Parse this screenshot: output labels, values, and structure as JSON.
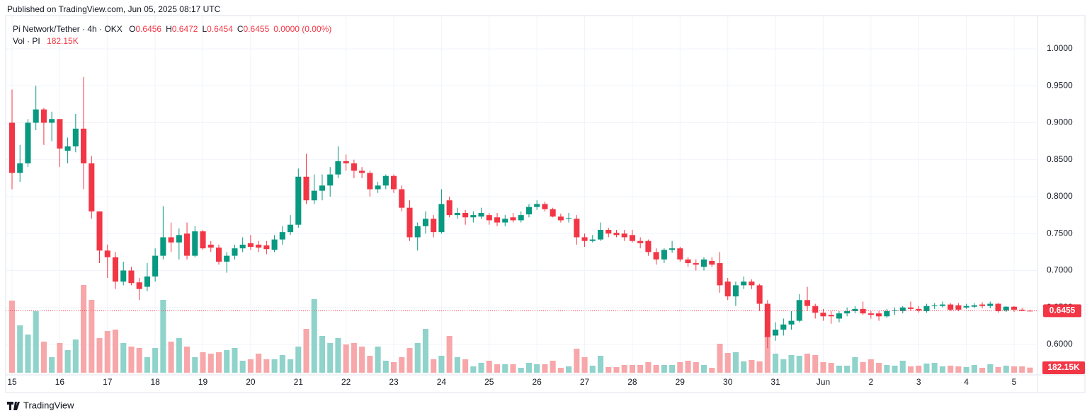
{
  "header": {
    "published": "Published on TradingView.com, Jun 05, 2025 08:17 UTC"
  },
  "chart_data": {
    "type": "candlestick",
    "title": "Pi Network/Tether · 4h · OKX",
    "legend": [
      {
        "key": "O",
        "value": 0.6456
      },
      {
        "key": "H",
        "value": 0.6472
      },
      {
        "key": "L",
        "value": 0.6454
      },
      {
        "key": "C",
        "value": 0.6455
      }
    ],
    "change": "0.0000 (0.00%)",
    "volume_title": "Vol · PI",
    "volume_value_label": "182.15K",
    "last_price": 0.6455,
    "up_color": "#089981",
    "down_color": "#f23645",
    "volume_up_color": "#8fd3cb",
    "volume_down_color": "#f7a7aa",
    "grid": true,
    "ylim": [
      0.5617,
      1.045
    ],
    "yticks": [
      {
        "value": 0.6,
        "label": "0.6000"
      },
      {
        "value": 0.65,
        "label": "0.6500"
      },
      {
        "value": 0.7,
        "label": "0.7000"
      },
      {
        "value": 0.75,
        "label": "0.7500"
      },
      {
        "value": 0.8,
        "label": "0.8000"
      },
      {
        "value": 0.85,
        "label": "0.8500"
      },
      {
        "value": 0.9,
        "label": "0.9000"
      },
      {
        "value": 0.95,
        "label": "0.9500"
      },
      {
        "value": 1.0,
        "label": "1.0000"
      }
    ],
    "volume_ylim": [
      0,
      3550000
    ],
    "xticks": [
      {
        "value": 0,
        "label": "15"
      },
      {
        "value": 6,
        "label": "16"
      },
      {
        "value": 12,
        "label": "17"
      },
      {
        "value": 18,
        "label": "18"
      },
      {
        "value": 24,
        "label": "19"
      },
      {
        "value": 30,
        "label": "20"
      },
      {
        "value": 36,
        "label": "21"
      },
      {
        "value": 42,
        "label": "22"
      },
      {
        "value": 48,
        "label": "23"
      },
      {
        "value": 54,
        "label": "24"
      },
      {
        "value": 60,
        "label": "25"
      },
      {
        "value": 66,
        "label": "26"
      },
      {
        "value": 72,
        "label": "27"
      },
      {
        "value": 78,
        "label": "28"
      },
      {
        "value": 84,
        "label": "29"
      },
      {
        "value": 90,
        "label": "30"
      },
      {
        "value": 96,
        "label": "31"
      },
      {
        "value": 102,
        "label": "Jun"
      },
      {
        "value": 108,
        "label": "2"
      },
      {
        "value": 114,
        "label": "3"
      },
      {
        "value": 120,
        "label": "4"
      },
      {
        "value": 126,
        "label": "5"
      }
    ],
    "open": [
      0.9,
      0.832,
      0.845,
      0.9,
      0.918,
      0.9,
      0.905,
      0.862,
      0.868,
      0.892,
      0.845,
      0.78,
      0.727,
      0.718,
      0.685,
      0.7,
      0.684,
      0.678,
      0.692,
      0.72,
      0.745,
      0.738,
      0.75,
      0.72,
      0.753,
      0.735,
      0.731,
      0.712,
      0.72,
      0.73,
      0.737,
      0.735,
      0.734,
      0.728,
      0.742,
      0.752,
      0.762,
      0.827,
      0.795,
      0.808,
      0.815,
      0.83,
      0.848,
      0.845,
      0.835,
      0.832,
      0.81,
      0.815,
      0.828,
      0.81,
      0.785,
      0.745,
      0.76,
      0.77,
      0.752,
      0.795,
      0.775,
      0.778,
      0.772,
      0.773,
      0.775,
      0.772,
      0.765,
      0.772,
      0.768,
      0.776,
      0.786,
      0.79,
      0.783,
      0.773,
      0.77,
      0.77,
      0.745,
      0.74,
      0.742,
      0.755,
      0.751,
      0.75,
      0.748,
      0.74,
      0.74,
      0.725,
      0.715,
      0.728,
      0.73,
      0.715,
      0.71,
      0.705,
      0.713,
      0.71,
      0.685,
      0.665,
      0.68,
      0.685,
      0.68,
      0.655,
      0.612,
      0.62,
      0.627,
      0.632,
      0.66,
      0.652,
      0.643,
      0.64,
      0.635,
      0.642,
      0.645,
      0.648,
      0.642,
      0.642,
      0.638,
      0.645,
      0.645,
      0.65,
      0.648,
      0.645,
      0.652,
      0.652,
      0.654,
      0.653,
      0.65,
      0.651,
      0.654,
      0.652,
      0.655,
      0.646,
      0.651,
      0.647,
      0.6456
    ],
    "high": [
      0.945,
      0.87,
      0.905,
      0.95,
      0.92,
      0.915,
      0.905,
      0.88,
      0.912,
      0.962,
      0.855,
      0.78,
      0.735,
      0.725,
      0.712,
      0.705,
      0.69,
      0.71,
      0.73,
      0.787,
      0.765,
      0.757,
      0.765,
      0.76,
      0.755,
      0.74,
      0.735,
      0.725,
      0.735,
      0.745,
      0.748,
      0.74,
      0.74,
      0.748,
      0.76,
      0.775,
      0.838,
      0.858,
      0.83,
      0.83,
      0.84,
      0.868,
      0.857,
      0.85,
      0.84,
      0.835,
      0.82,
      0.83,
      0.83,
      0.815,
      0.795,
      0.765,
      0.78,
      0.775,
      0.81,
      0.8,
      0.785,
      0.782,
      0.78,
      0.785,
      0.778,
      0.778,
      0.775,
      0.778,
      0.78,
      0.79,
      0.795,
      0.793,
      0.785,
      0.777,
      0.778,
      0.775,
      0.75,
      0.748,
      0.765,
      0.758,
      0.755,
      0.755,
      0.755,
      0.745,
      0.742,
      0.73,
      0.73,
      0.74,
      0.732,
      0.718,
      0.715,
      0.718,
      0.718,
      0.725,
      0.69,
      0.685,
      0.692,
      0.688,
      0.682,
      0.66,
      0.63,
      0.635,
      0.645,
      0.668,
      0.678,
      0.655,
      0.648,
      0.645,
      0.645,
      0.65,
      0.652,
      0.658,
      0.645,
      0.645,
      0.648,
      0.65,
      0.652,
      0.658,
      0.652,
      0.655,
      0.656,
      0.658,
      0.656,
      0.656,
      0.655,
      0.656,
      0.657,
      0.658,
      0.656,
      0.652,
      0.652,
      0.649,
      0.6472
    ],
    "low": [
      0.81,
      0.82,
      0.84,
      0.89,
      0.87,
      0.875,
      0.84,
      0.845,
      0.86,
      0.81,
      0.77,
      0.71,
      0.69,
      0.675,
      0.68,
      0.68,
      0.66,
      0.672,
      0.685,
      0.715,
      0.725,
      0.715,
      0.715,
      0.718,
      0.728,
      0.725,
      0.708,
      0.697,
      0.715,
      0.725,
      0.728,
      0.725,
      0.722,
      0.725,
      0.735,
      0.748,
      0.758,
      0.79,
      0.79,
      0.795,
      0.8,
      0.825,
      0.835,
      0.825,
      0.825,
      0.8,
      0.805,
      0.81,
      0.805,
      0.78,
      0.74,
      0.727,
      0.75,
      0.745,
      0.75,
      0.772,
      0.77,
      0.762,
      0.765,
      0.77,
      0.762,
      0.76,
      0.76,
      0.765,
      0.765,
      0.772,
      0.782,
      0.78,
      0.772,
      0.765,
      0.765,
      0.735,
      0.732,
      0.738,
      0.74,
      0.745,
      0.745,
      0.74,
      0.738,
      0.73,
      0.72,
      0.708,
      0.71,
      0.724,
      0.712,
      0.705,
      0.7,
      0.7,
      0.705,
      0.67,
      0.66,
      0.652,
      0.675,
      0.675,
      0.645,
      0.595,
      0.605,
      0.612,
      0.62,
      0.63,
      0.645,
      0.635,
      0.632,
      0.628,
      0.63,
      0.638,
      0.642,
      0.64,
      0.635,
      0.632,
      0.636,
      0.64,
      0.642,
      0.645,
      0.643,
      0.643,
      0.648,
      0.65,
      0.645,
      0.645,
      0.648,
      0.649,
      0.649,
      0.649,
      0.643,
      0.644,
      0.644,
      0.645,
      0.6454
    ],
    "close": [
      0.832,
      0.845,
      0.9,
      0.918,
      0.9,
      0.905,
      0.865,
      0.868,
      0.892,
      0.845,
      0.78,
      0.727,
      0.718,
      0.685,
      0.7,
      0.683,
      0.675,
      0.692,
      0.72,
      0.745,
      0.738,
      0.748,
      0.72,
      0.753,
      0.73,
      0.731,
      0.712,
      0.72,
      0.73,
      0.735,
      0.732,
      0.731,
      0.729,
      0.742,
      0.752,
      0.762,
      0.827,
      0.795,
      0.808,
      0.815,
      0.83,
      0.848,
      0.845,
      0.835,
      0.832,
      0.81,
      0.815,
      0.828,
      0.81,
      0.785,
      0.745,
      0.76,
      0.77,
      0.752,
      0.79,
      0.775,
      0.778,
      0.772,
      0.775,
      0.778,
      0.768,
      0.765,
      0.77,
      0.768,
      0.775,
      0.786,
      0.79,
      0.783,
      0.773,
      0.768,
      0.771,
      0.745,
      0.74,
      0.742,
      0.755,
      0.75,
      0.748,
      0.745,
      0.74,
      0.737,
      0.725,
      0.715,
      0.728,
      0.73,
      0.715,
      0.71,
      0.708,
      0.715,
      0.708,
      0.68,
      0.665,
      0.68,
      0.685,
      0.68,
      0.655,
      0.61,
      0.62,
      0.627,
      0.632,
      0.66,
      0.652,
      0.643,
      0.638,
      0.638,
      0.642,
      0.645,
      0.648,
      0.642,
      0.64,
      0.638,
      0.645,
      0.646,
      0.65,
      0.648,
      0.646,
      0.652,
      0.653,
      0.654,
      0.647,
      0.647,
      0.652,
      0.653,
      0.652,
      0.655,
      0.645,
      0.651,
      0.647,
      0.6456,
      0.6455
    ],
    "volume": [
      2550000,
      1675000,
      1350000,
      2175000,
      1100000,
      550000,
      1050000,
      800000,
      1175000,
      3100000,
      2575000,
      1225000,
      1475000,
      1525000,
      1050000,
      925000,
      875000,
      550000,
      875000,
      2575000,
      1100000,
      1225000,
      925000,
      550000,
      725000,
      675000,
      725000,
      800000,
      875000,
      425000,
      475000,
      675000,
      475000,
      475000,
      625000,
      475000,
      925000,
      1550000,
      2600000,
      1300000,
      1050000,
      1225000,
      1000000,
      1050000,
      925000,
      600000,
      925000,
      425000,
      375000,
      550000,
      875000,
      1050000,
      1550000,
      475000,
      600000,
      1300000,
      550000,
      475000,
      225000,
      350000,
      425000,
      300000,
      300000,
      300000,
      175000,
      350000,
      300000,
      300000,
      425000,
      175000,
      225000,
      850000,
      550000,
      250000,
      600000,
      200000,
      200000,
      275000,
      275000,
      275000,
      375000,
      275000,
      275000,
      275000,
      375000,
      425000,
      375000,
      275000,
      175000,
      1025000,
      700000,
      725000,
      400000,
      450000,
      400000,
      1300000,
      675000,
      475000,
      625000,
      600000,
      675000,
      625000,
      375000,
      350000,
      250000,
      250000,
      550000,
      375000,
      475000,
      350000,
      275000,
      250000,
      425000,
      225000,
      250000,
      325000,
      350000,
      225000,
      250000,
      225000,
      200000,
      275000,
      175000,
      300000,
      200000,
      250000,
      225000,
      225000,
      182150
    ]
  },
  "footer": {
    "brand": "TradingView"
  }
}
